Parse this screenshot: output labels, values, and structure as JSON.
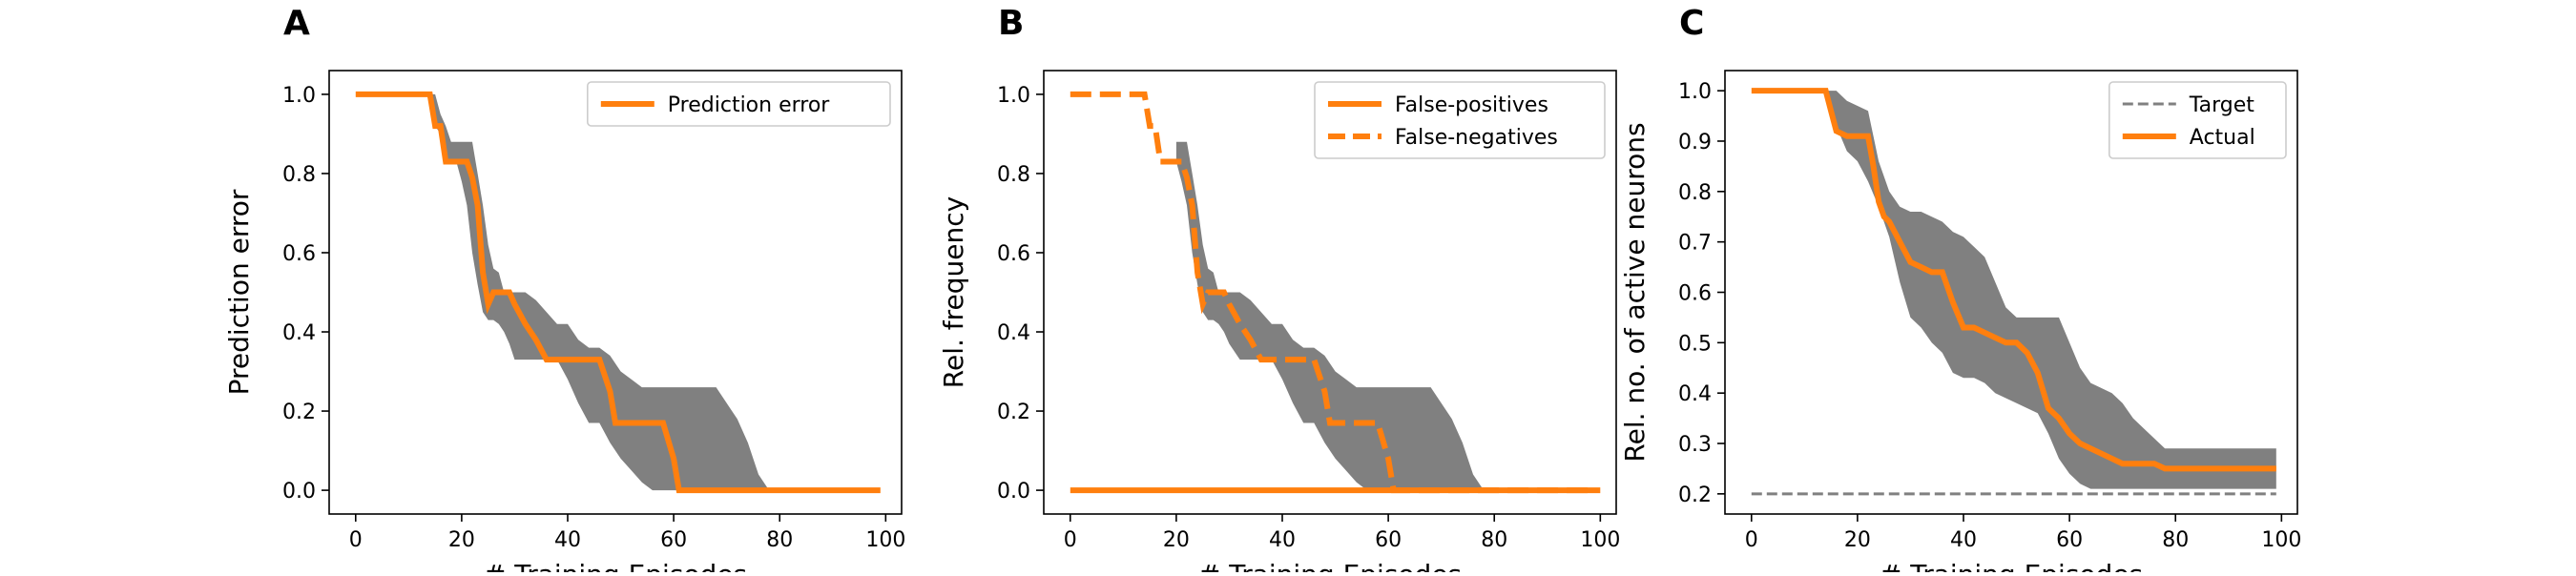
{
  "colors": {
    "line": "#ff7f0e",
    "band": "#808080",
    "target": "#808080",
    "axis": "#000000"
  },
  "chart_data": [
    {
      "panel_label": "A",
      "type": "line",
      "xlabel": "# Training Episodes",
      "ylabel": "Prediction error",
      "xlim": [
        -5,
        103
      ],
      "ylim": [
        -0.06,
        1.06
      ],
      "xticks": [
        0,
        20,
        40,
        60,
        80,
        100
      ],
      "yticks": [
        0.0,
        0.2,
        0.4,
        0.6,
        0.8,
        1.0
      ],
      "ytick_format": "0.0",
      "legend_position": "top-right",
      "band": {
        "x": [
          0,
          14,
          15,
          16,
          17,
          18,
          19,
          20,
          21,
          22,
          23,
          24,
          25,
          26,
          27,
          28,
          29,
          30,
          32,
          34,
          36,
          38,
          40,
          42,
          44,
          46,
          48,
          50,
          52,
          54,
          56,
          58,
          60,
          62,
          64,
          66,
          68,
          70,
          72,
          74,
          76,
          78,
          80,
          90,
          99
        ],
        "lower": [
          1.0,
          1.0,
          0.92,
          0.9,
          0.83,
          0.83,
          0.83,
          0.78,
          0.72,
          0.6,
          0.52,
          0.45,
          0.43,
          0.43,
          0.42,
          0.4,
          0.37,
          0.33,
          0.33,
          0.33,
          0.33,
          0.33,
          0.28,
          0.22,
          0.17,
          0.17,
          0.12,
          0.08,
          0.05,
          0.02,
          0.0,
          0.0,
          0.0,
          0.0,
          0.0,
          0.0,
          0.0,
          0.0,
          0.0,
          0.0,
          0.0,
          0.0,
          0.0,
          0.0,
          0.0
        ],
        "upper": [
          1.0,
          1.0,
          1.0,
          0.95,
          0.92,
          0.88,
          0.88,
          0.88,
          0.88,
          0.88,
          0.8,
          0.72,
          0.62,
          0.56,
          0.55,
          0.5,
          0.5,
          0.5,
          0.5,
          0.48,
          0.45,
          0.42,
          0.42,
          0.38,
          0.36,
          0.36,
          0.34,
          0.3,
          0.28,
          0.26,
          0.26,
          0.26,
          0.26,
          0.26,
          0.26,
          0.26,
          0.26,
          0.22,
          0.18,
          0.12,
          0.04,
          0.0,
          0.0,
          0.0,
          0.0
        ]
      },
      "series": [
        {
          "name": "Prediction error",
          "style": "solid",
          "x": [
            0,
            14,
            15,
            16,
            17,
            18,
            19,
            20,
            21,
            22,
            23,
            24,
            25,
            26,
            27,
            28,
            29,
            30,
            32,
            34,
            36,
            38,
            40,
            42,
            44,
            46,
            48,
            49,
            50,
            52,
            54,
            56,
            58,
            60,
            61,
            62,
            70,
            80,
            90,
            99
          ],
          "y": [
            1.0,
            1.0,
            0.92,
            0.92,
            0.83,
            0.83,
            0.83,
            0.83,
            0.83,
            0.79,
            0.72,
            0.55,
            0.47,
            0.5,
            0.5,
            0.5,
            0.5,
            0.47,
            0.42,
            0.38,
            0.33,
            0.33,
            0.33,
            0.33,
            0.33,
            0.33,
            0.25,
            0.17,
            0.17,
            0.17,
            0.17,
            0.17,
            0.17,
            0.08,
            0.0,
            0.0,
            0.0,
            0.0,
            0.0,
            0.0
          ]
        }
      ]
    },
    {
      "panel_label": "B",
      "type": "line",
      "xlabel": "# Training Episodes",
      "ylabel": "Rel. frequency",
      "xlim": [
        -5,
        103
      ],
      "ylim": [
        -0.06,
        1.06
      ],
      "xticks": [
        0,
        20,
        40,
        60,
        80,
        100
      ],
      "yticks": [
        0.0,
        0.2,
        0.4,
        0.6,
        0.8,
        1.0
      ],
      "ytick_format": "0.0",
      "legend_position": "top-right",
      "band": {
        "x": [
          20,
          21,
          22,
          23,
          24,
          25,
          26,
          27,
          28,
          29,
          30,
          32,
          34,
          36,
          38,
          40,
          42,
          44,
          46,
          48,
          50,
          52,
          54,
          56,
          58,
          60,
          62,
          64,
          66,
          68,
          70,
          72,
          74,
          76,
          78
        ],
        "lower": [
          0.83,
          0.78,
          0.72,
          0.6,
          0.52,
          0.45,
          0.43,
          0.43,
          0.42,
          0.4,
          0.37,
          0.33,
          0.33,
          0.33,
          0.33,
          0.28,
          0.22,
          0.17,
          0.17,
          0.12,
          0.08,
          0.05,
          0.02,
          0.0,
          0.0,
          0.0,
          0.0,
          0.0,
          0.0,
          0.0,
          0.0,
          0.0,
          0.0,
          0.0,
          0.0
        ],
        "upper": [
          0.88,
          0.88,
          0.88,
          0.8,
          0.72,
          0.62,
          0.56,
          0.55,
          0.5,
          0.5,
          0.5,
          0.5,
          0.48,
          0.45,
          0.42,
          0.42,
          0.38,
          0.36,
          0.36,
          0.34,
          0.3,
          0.28,
          0.26,
          0.26,
          0.26,
          0.26,
          0.26,
          0.26,
          0.26,
          0.26,
          0.22,
          0.18,
          0.12,
          0.04,
          0.0
        ]
      },
      "series": [
        {
          "name": "False-positives",
          "style": "solid",
          "x": [
            0,
            100
          ],
          "y": [
            0.0,
            0.0
          ]
        },
        {
          "name": "False-negatives",
          "style": "dashed",
          "x": [
            0,
            14,
            15,
            16,
            17,
            18,
            19,
            20,
            21,
            22,
            23,
            24,
            25,
            26,
            27,
            28,
            29,
            30,
            32,
            34,
            36,
            38,
            40,
            42,
            44,
            46,
            48,
            49,
            50,
            52,
            54,
            56,
            58,
            60,
            61,
            62,
            70,
            80,
            90,
            99
          ],
          "y": [
            1.0,
            1.0,
            0.92,
            0.92,
            0.83,
            0.83,
            0.83,
            0.83,
            0.83,
            0.79,
            0.72,
            0.55,
            0.47,
            0.5,
            0.5,
            0.5,
            0.5,
            0.47,
            0.42,
            0.38,
            0.33,
            0.33,
            0.33,
            0.33,
            0.33,
            0.33,
            0.25,
            0.17,
            0.17,
            0.17,
            0.17,
            0.17,
            0.17,
            0.08,
            0.0,
            0.0,
            0.0,
            0.0,
            0.0,
            0.0
          ]
        }
      ]
    },
    {
      "panel_label": "C",
      "type": "line",
      "xlabel": "# Training Episodes",
      "ylabel": "Rel. no. of active neurons",
      "xlim": [
        -5,
        103
      ],
      "ylim": [
        0.16,
        1.04
      ],
      "xticks": [
        0,
        20,
        40,
        60,
        80,
        100
      ],
      "yticks": [
        0.2,
        0.3,
        0.4,
        0.5,
        0.6,
        0.7,
        0.8,
        0.9,
        1.0
      ],
      "ytick_format": "0.0",
      "legend_position": "top-right",
      "band": {
        "x": [
          0,
          14,
          16,
          18,
          20,
          22,
          24,
          26,
          28,
          30,
          32,
          34,
          36,
          38,
          40,
          42,
          44,
          46,
          48,
          50,
          52,
          54,
          56,
          58,
          60,
          62,
          64,
          66,
          68,
          70,
          72,
          74,
          76,
          78,
          80,
          85,
          90,
          95,
          99
        ],
        "lower": [
          1.0,
          1.0,
          0.93,
          0.88,
          0.86,
          0.82,
          0.77,
          0.71,
          0.62,
          0.55,
          0.53,
          0.5,
          0.48,
          0.44,
          0.43,
          0.43,
          0.42,
          0.4,
          0.39,
          0.38,
          0.37,
          0.36,
          0.32,
          0.27,
          0.24,
          0.22,
          0.21,
          0.21,
          0.21,
          0.21,
          0.21,
          0.21,
          0.21,
          0.21,
          0.21,
          0.21,
          0.21,
          0.21,
          0.21
        ],
        "upper": [
          1.0,
          1.0,
          1.0,
          0.98,
          0.97,
          0.96,
          0.86,
          0.8,
          0.77,
          0.76,
          0.76,
          0.75,
          0.74,
          0.72,
          0.71,
          0.69,
          0.67,
          0.62,
          0.57,
          0.55,
          0.55,
          0.55,
          0.55,
          0.55,
          0.5,
          0.45,
          0.42,
          0.41,
          0.4,
          0.38,
          0.35,
          0.33,
          0.31,
          0.29,
          0.29,
          0.29,
          0.29,
          0.29,
          0.29
        ]
      },
      "series": [
        {
          "name": "Target",
          "style": "dashed-thin",
          "x": [
            0,
            99
          ],
          "y": [
            0.2,
            0.2
          ]
        },
        {
          "name": "Actual",
          "style": "solid",
          "x": [
            0,
            14,
            15,
            16,
            18,
            20,
            22,
            23,
            24,
            25,
            26,
            28,
            30,
            32,
            34,
            36,
            38,
            40,
            42,
            44,
            46,
            48,
            50,
            52,
            54,
            56,
            58,
            60,
            62,
            64,
            66,
            68,
            70,
            72,
            74,
            76,
            78,
            80,
            90,
            99
          ],
          "y": [
            1.0,
            1.0,
            0.96,
            0.92,
            0.91,
            0.91,
            0.91,
            0.85,
            0.78,
            0.75,
            0.74,
            0.7,
            0.66,
            0.65,
            0.64,
            0.64,
            0.58,
            0.53,
            0.53,
            0.52,
            0.51,
            0.5,
            0.5,
            0.48,
            0.44,
            0.37,
            0.35,
            0.32,
            0.3,
            0.29,
            0.28,
            0.27,
            0.26,
            0.26,
            0.26,
            0.26,
            0.25,
            0.25,
            0.25,
            0.25
          ]
        }
      ]
    }
  ]
}
